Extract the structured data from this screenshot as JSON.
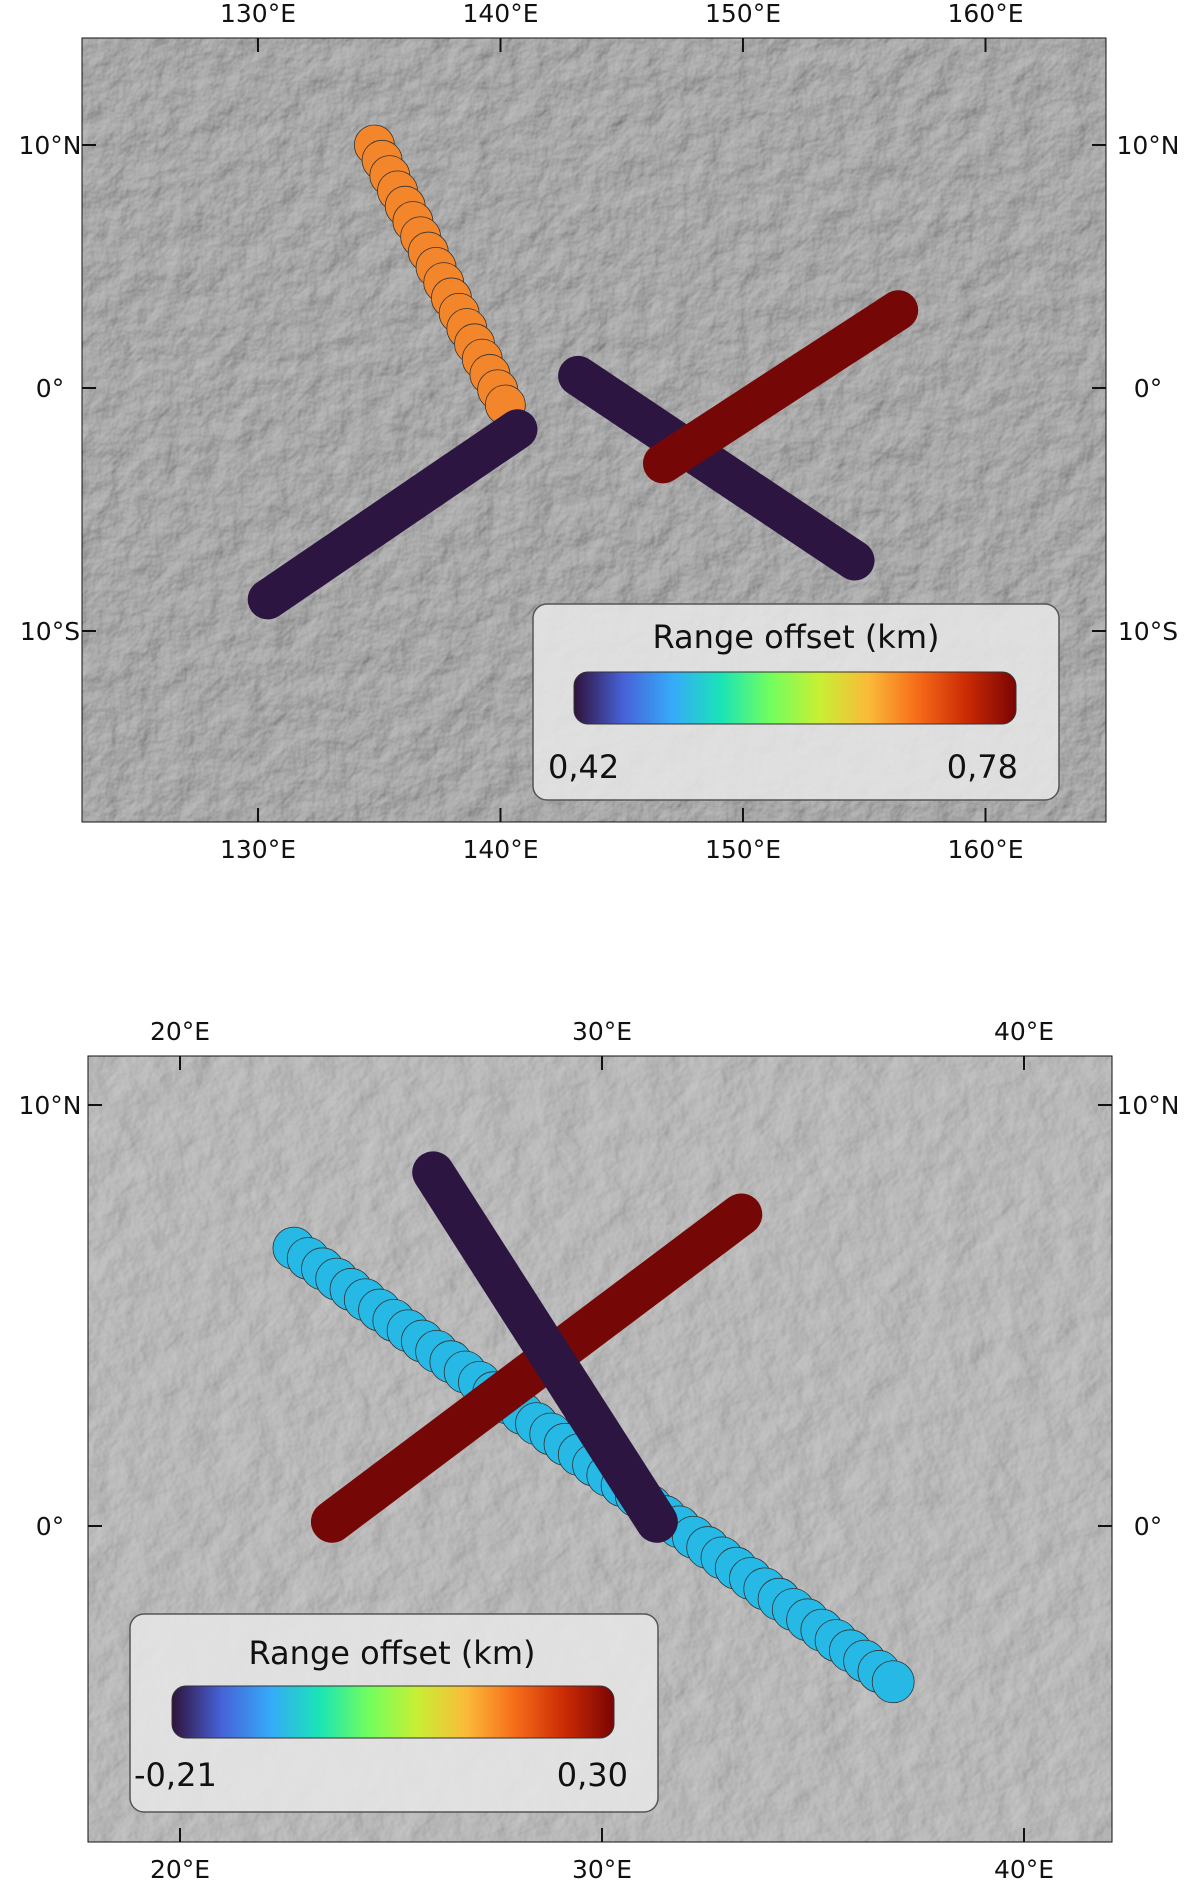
{
  "panels": [
    {
      "id": "top",
      "x_ticks": [
        "130°E",
        "140°E",
        "150°E",
        "160°E"
      ],
      "y_ticks": [
        "10°N",
        "0°",
        "10°S"
      ],
      "legend": {
        "title": "Range offset (km)",
        "min_label": "0,42",
        "max_label": "0,78"
      },
      "colorbar": {
        "min": 0.42,
        "max": 0.78
      },
      "tracks": [
        {
          "color": "#f3852a",
          "style": "circles",
          "start": [
            134.8,
            10.0
          ],
          "end": [
            140.2,
            -0.7
          ]
        },
        {
          "color": "#2c1641",
          "style": "solid",
          "start": [
            130.4,
            -8.7
          ],
          "end": [
            140.7,
            -1.7
          ]
        },
        {
          "color": "#2c1641",
          "style": "solid",
          "start": [
            143.2,
            0.5
          ],
          "end": [
            154.6,
            -7.1
          ]
        },
        {
          "color": "#760707",
          "style": "solid",
          "start": [
            146.7,
            -3.1
          ],
          "end": [
            156.4,
            3.2
          ]
        }
      ]
    },
    {
      "id": "bottom",
      "x_ticks": [
        "20°E",
        "30°E",
        "40°E"
      ],
      "y_ticks": [
        "10°N",
        "0°"
      ],
      "legend": {
        "title": "Range offset (km)",
        "min_label": "-0,21",
        "max_label": "0,30"
      },
      "colorbar": {
        "min": -0.21,
        "max": 0.3
      },
      "tracks": [
        {
          "color": "#26b9e6",
          "style": "circles",
          "start": [
            22.7,
            6.6
          ],
          "end": [
            36.9,
            -3.7
          ]
        },
        {
          "color": "#760707",
          "style": "solid",
          "start": [
            23.6,
            0.1
          ],
          "end": [
            33.3,
            7.4
          ]
        },
        {
          "color": "#2c1641",
          "style": "solid",
          "start": [
            26.0,
            8.4
          ],
          "end": [
            31.3,
            0.1
          ]
        }
      ]
    }
  ],
  "colormap": [
    "#30123b",
    "#4662d7",
    "#36aaf9",
    "#1ae4b6",
    "#72fe5e",
    "#c8ef34",
    "#faba39",
    "#f66b19",
    "#ca2a04",
    "#7a0403"
  ]
}
